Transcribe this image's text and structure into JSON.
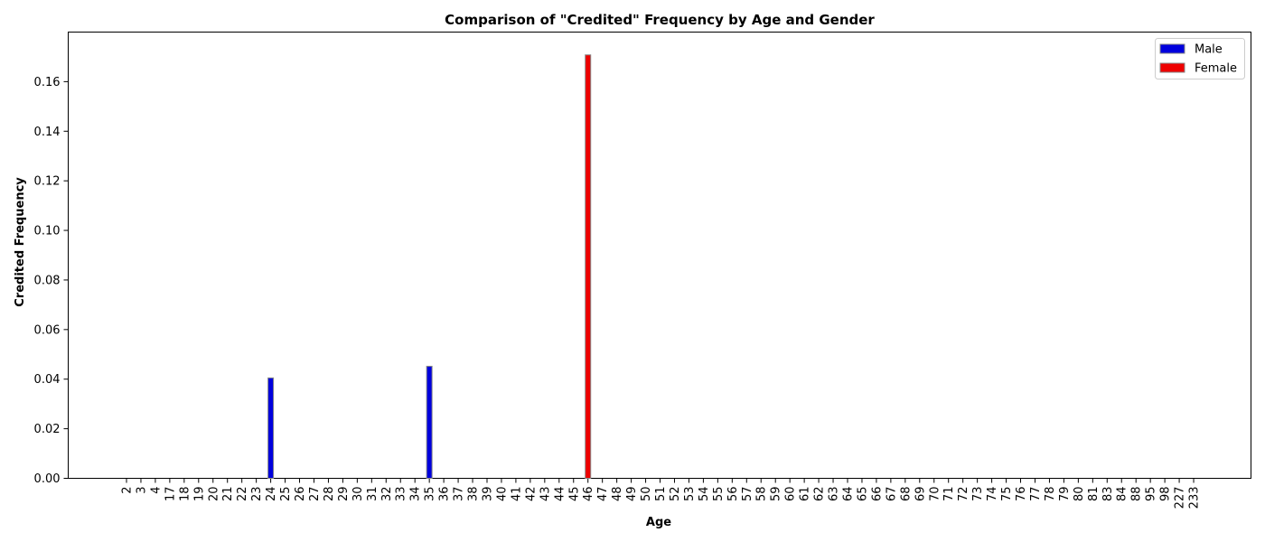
{
  "chart_data": {
    "type": "bar",
    "title": "Comparison of \"Credited\" Frequency by Age and Gender",
    "xlabel": "Age",
    "ylabel": "Credited Frequency",
    "categories": [
      "2",
      "3",
      "4",
      "17",
      "18",
      "19",
      "20",
      "21",
      "22",
      "23",
      "24",
      "25",
      "26",
      "27",
      "28",
      "29",
      "30",
      "31",
      "32",
      "33",
      "34",
      "35",
      "36",
      "37",
      "38",
      "39",
      "40",
      "41",
      "42",
      "43",
      "44",
      "45",
      "46",
      "47",
      "48",
      "49",
      "50",
      "51",
      "52",
      "53",
      "54",
      "55",
      "56",
      "57",
      "58",
      "59",
      "60",
      "61",
      "62",
      "63",
      "64",
      "65",
      "66",
      "67",
      "68",
      "69",
      "70",
      "71",
      "72",
      "73",
      "74",
      "75",
      "76",
      "77",
      "78",
      "79",
      "80",
      "81",
      "83",
      "84",
      "88",
      "95",
      "98",
      "227",
      "233"
    ],
    "ylim": [
      0,
      0.18
    ],
    "yticks": [
      "0.00",
      "0.02",
      "0.04",
      "0.06",
      "0.08",
      "0.10",
      "0.12",
      "0.14",
      "0.16"
    ],
    "grid": false,
    "legend_position": "top-right",
    "series": [
      {
        "name": "Male",
        "color": "#0000dd",
        "values": {
          "24": 0.0405,
          "35": 0.0452
        }
      },
      {
        "name": "Female",
        "color": "#ee0000",
        "values": {
          "46": 0.1708
        }
      }
    ]
  }
}
